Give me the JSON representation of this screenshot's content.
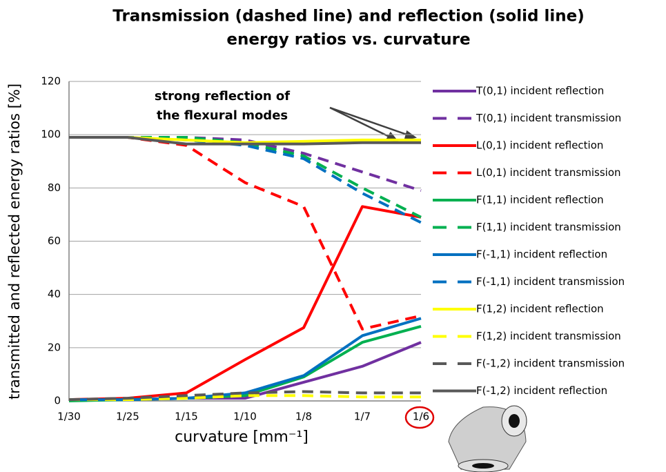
{
  "chart_data": {
    "type": "line",
    "title": [
      "Transmission (dashed line) and reflection  (solid line)",
      "energy ratios vs. curvature"
    ],
    "x_label": "curvature [mm⁻¹]",
    "y_label": "transmitted and reflected energy ratios [%]",
    "annotation": [
      "strong reflection of",
      "the flexural modes"
    ],
    "categories": [
      "1/30",
      "1/25",
      "1/15",
      "1/10",
      "1/8",
      "1/7",
      "1/6"
    ],
    "ylim": [
      0,
      120
    ],
    "yticks": [
      0,
      20,
      40,
      60,
      80,
      100,
      120
    ],
    "grid": true,
    "series": [
      {
        "name": "T(0,1) incident reflection",
        "color": "#7030a0",
        "dashed": false,
        "values": [
          0.5,
          0.5,
          1,
          1,
          7,
          13,
          22
        ]
      },
      {
        "name": "T(0,1) incident transmission",
        "color": "#7030a0",
        "dashed": true,
        "values": [
          99,
          99,
          99,
          98,
          93,
          86,
          79
        ]
      },
      {
        "name": "L(0,1) incident reflection",
        "color": "#ff0000",
        "dashed": false,
        "values": [
          0.5,
          1,
          3,
          15.5,
          27.5,
          73,
          69
        ]
      },
      {
        "name": "L(0,1) incident transmission",
        "color": "#ff0000",
        "dashed": true,
        "values": [
          99,
          99,
          96,
          82,
          73,
          27,
          32
        ]
      },
      {
        "name": "F(1,1) incident reflection",
        "color": "#00b050",
        "dashed": false,
        "values": [
          0,
          0.5,
          1,
          2,
          9,
          22,
          28
        ]
      },
      {
        "name": "F(1,1) incident transmission",
        "color": "#00b050",
        "dashed": true,
        "values": [
          99,
          99,
          99,
          97,
          92,
          80,
          69
        ]
      },
      {
        "name": "F(-1,1) incident reflection",
        "color": "#0070c0",
        "dashed": false,
        "values": [
          0.5,
          0.5,
          1,
          3,
          9.5,
          24.5,
          31
        ]
      },
      {
        "name": "F(-1,1) incident transmission",
        "color": "#0070c0",
        "dashed": true,
        "values": [
          99,
          99,
          98,
          96,
          91,
          78,
          67
        ]
      },
      {
        "name": "F(1,2) incident reflection",
        "color": "#ffff00",
        "dashed": false,
        "values": [
          99,
          99,
          98,
          97,
          97.5,
          98,
          98
        ]
      },
      {
        "name": "F(1,2) incident transmission",
        "color": "#ffff00",
        "dashed": true,
        "values": [
          0.5,
          0.5,
          1,
          2,
          2,
          1.5,
          1.5
        ]
      },
      {
        "name": "F(-1,2) incident transmission",
        "color": "#595959",
        "dashed": true,
        "values": [
          0.5,
          1,
          2,
          3,
          3.5,
          3,
          3
        ]
      },
      {
        "name": "F(-1,2) incident reflection",
        "color": "#595959",
        "dashed": false,
        "values": [
          99,
          99,
          96.5,
          96.5,
          96.5,
          97,
          97
        ]
      }
    ]
  }
}
